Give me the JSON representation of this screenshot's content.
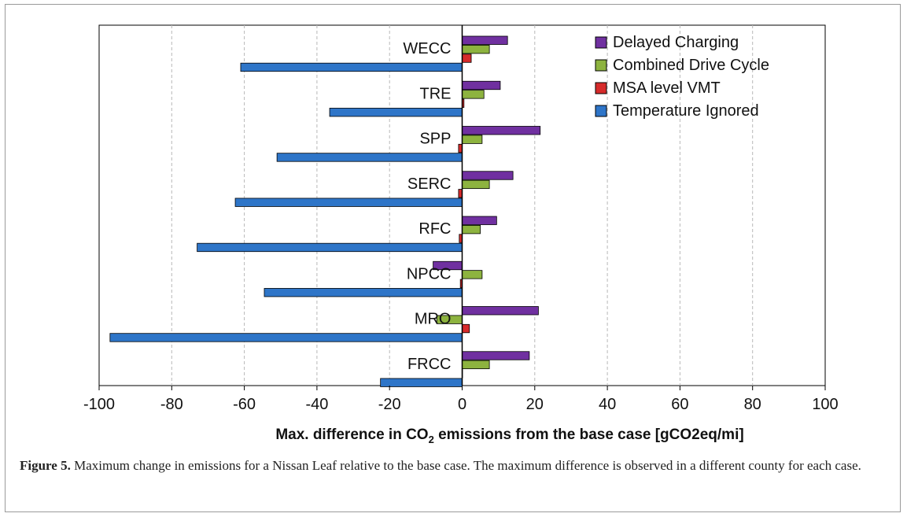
{
  "figure": {
    "caption_label": "Figure 5.",
    "caption_text": " Maximum change in emissions for a Nissan Leaf relative to the base case. The maximum difference is observed in a different county for each case."
  },
  "chart_data": {
    "type": "bar",
    "orientation": "horizontal",
    "categories": [
      "WECC",
      "TRE",
      "SPP",
      "SERC",
      "RFC",
      "NPCC",
      "MRO",
      "FRCC"
    ],
    "series": [
      {
        "name": "Delayed Charging",
        "color": "#7030A0",
        "values": [
          12.5,
          10.5,
          21.5,
          14,
          9.5,
          -8,
          21,
          18.5
        ]
      },
      {
        "name": "Combined Drive Cycle",
        "color": "#8DB33F",
        "values": [
          7.5,
          6,
          5.5,
          7.5,
          5,
          5.5,
          -7,
          7.5
        ]
      },
      {
        "name": "MSA level VMT",
        "color": "#D62B2B",
        "values": [
          2.5,
          0.5,
          -1,
          -1,
          -0.8,
          -0.5,
          2,
          0
        ]
      },
      {
        "name": "Temperature Ignored",
        "color": "#2E75C8",
        "values": [
          -61,
          -36.5,
          -51,
          -62.5,
          -73,
          -54.5,
          -97,
          -22.5
        ]
      }
    ],
    "xlim": [
      -100,
      100
    ],
    "xticks": [
      -100,
      -80,
      -60,
      -40,
      -20,
      0,
      20,
      40,
      60,
      80,
      100
    ],
    "xlabel_main": "Max. difference in CO",
    "xlabel_sub": "2",
    "xlabel_tail": " emissions from the base case [gCO2eq/mi]",
    "grid": "vertical dashed",
    "legend_position": "top-right"
  }
}
